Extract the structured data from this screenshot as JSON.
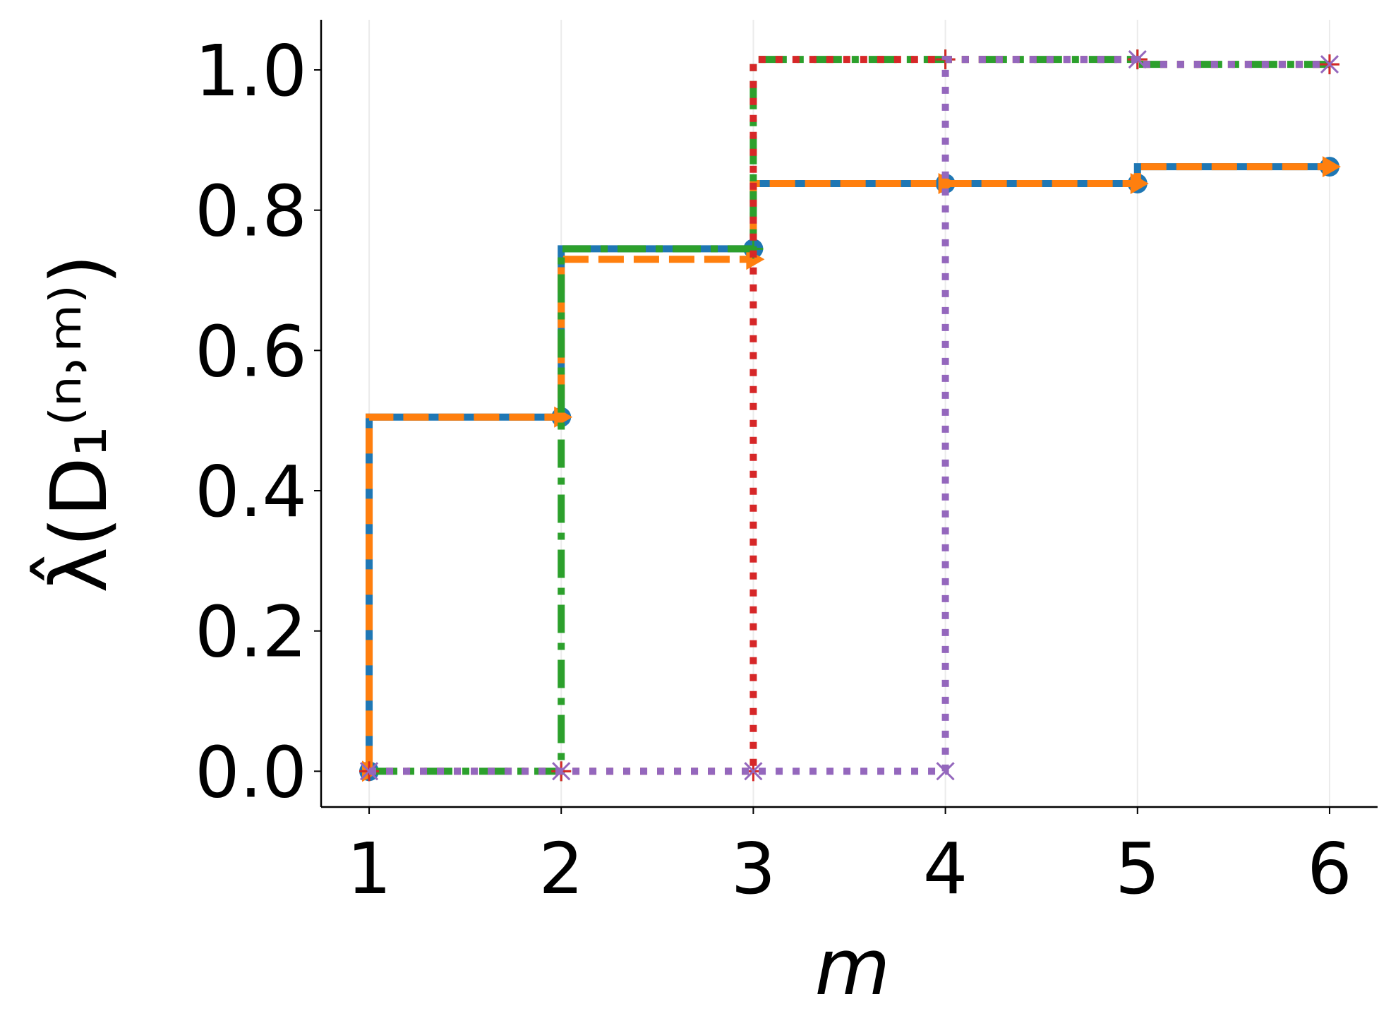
{
  "chart_data": {
    "type": "step",
    "xlabel": "m",
    "ylabel": "λ̂(D₁⁽ⁿ˒ᵐ⁾)",
    "x": [
      1,
      2,
      3,
      4,
      5,
      6
    ],
    "xlim": [
      0.75,
      6.25
    ],
    "xticks": [
      1,
      2,
      3,
      4,
      5,
      6
    ],
    "ylim": [
      -0.051,
      1.0715
    ],
    "yticks": [
      {
        "value": 0,
        "label": "0.0"
      },
      {
        "value": 0.2,
        "label": "0.2"
      },
      {
        "value": 0.4,
        "label": "0.4"
      },
      {
        "value": 0.6,
        "label": "0.6"
      },
      {
        "value": 0.8,
        "label": "0.8"
      },
      {
        "value": 1,
        "label": "1.0"
      }
    ],
    "grid": true,
    "series": [
      {
        "color": "#1f77b4",
        "linestyle": "solid",
        "marker": "circle",
        "values": [
          0,
          0.505,
          0.745,
          0.838,
          0.838,
          0.862
        ]
      },
      {
        "color": "#ff7f0e",
        "linestyle": "dashed",
        "marker": "triangle",
        "values": [
          0,
          0.505,
          0.73,
          0.838,
          0.838,
          0.862
        ]
      },
      {
        "color": "#2ca02c",
        "linestyle": "dashdot",
        "marker": "plus",
        "values": [
          0,
          0,
          0.745,
          1.015,
          1.015,
          1.008
        ]
      },
      {
        "color": "#d62728",
        "linestyle": "dotted",
        "marker": "plus",
        "values": [
          0,
          0,
          0,
          1.015,
          1.015,
          1.008
        ]
      },
      {
        "color": "#9467bd",
        "linestyle": "dotted",
        "marker": "x",
        "values": [
          0,
          0,
          0,
          0,
          1.015,
          1.008
        ]
      }
    ]
  }
}
